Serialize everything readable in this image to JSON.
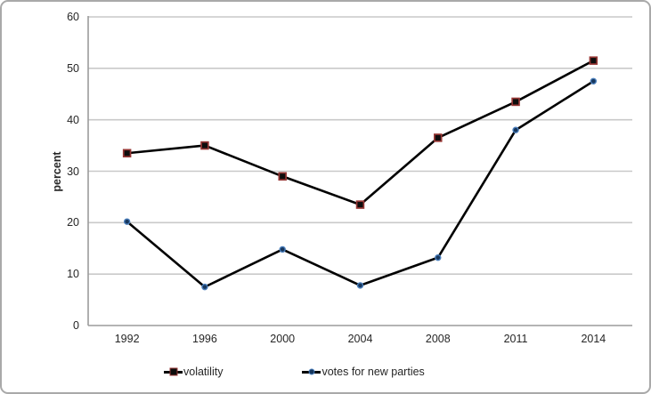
{
  "chart_data": {
    "type": "line",
    "title": "",
    "xlabel": "",
    "ylabel": "percent",
    "categories": [
      "1992",
      "1996",
      "2000",
      "2004",
      "2008",
      "2011",
      "2014"
    ],
    "series": [
      {
        "name": "volatility",
        "marker": "square",
        "line_color": "#000000",
        "marker_fill": "#0d0d0d",
        "marker_border": "#963634",
        "values": [
          33.5,
          35,
          29,
          23.5,
          36.5,
          43.5,
          51.5
        ]
      },
      {
        "name": "votes for new parties",
        "marker": "circle",
        "line_color": "#000000",
        "marker_fill": "#17375d",
        "marker_border": "#4a7ebb",
        "values": [
          20.2,
          7.5,
          14.8,
          7.8,
          13.2,
          38,
          47.5
        ]
      }
    ],
    "ylim": [
      0,
      60
    ],
    "ytick_step": 10,
    "grid": true,
    "legend_position": "bottom",
    "colors": {
      "gridline": "#c9c9c9",
      "axis": "#9b9b9b",
      "text": "#262626",
      "frame_border": "#a9a9a9",
      "background": "#ffffff"
    }
  }
}
